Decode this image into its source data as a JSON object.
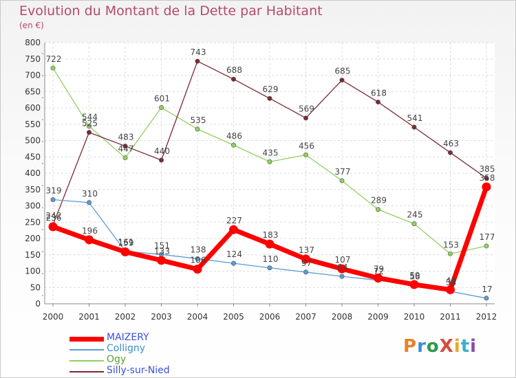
{
  "header": {
    "title": "Evolution du Montant de la Dette par Habitant",
    "subtitle": "(en €)"
  },
  "logo": {
    "text": "ProXiti",
    "colors": [
      "#e8822a",
      "#3a8fd0",
      "#2a9a4a",
      "#d84a3a",
      "#e8a82a",
      "#3ab0d0",
      "#8a4ab0"
    ]
  },
  "chart_data": {
    "type": "line",
    "title": "Evolution du Montant de la Dette par Habitant",
    "subtitle": "(en €)",
    "x": [
      "2000",
      "2001",
      "2002",
      "2003",
      "2004",
      "2005",
      "2006",
      "2007",
      "2008",
      "2009",
      "2010",
      "2011",
      "2012"
    ],
    "ylim": [
      0,
      800
    ],
    "yticks": [
      0,
      50,
      100,
      150,
      200,
      250,
      300,
      350,
      400,
      450,
      500,
      550,
      600,
      650,
      700,
      750,
      800
    ],
    "grid": true,
    "legend_position": "bottom-left",
    "series": [
      {
        "name": "MAIZERY",
        "color": "#ff0000",
        "values": [
          236,
          196,
          159,
          133,
          106,
          227,
          183,
          137,
          107,
          79,
          59,
          43,
          358
        ],
        "labels": [
          "236",
          "196",
          "159",
          "133",
          "106",
          "227",
          "183",
          "137",
          "107",
          "79",
          "59",
          "43",
          "358"
        ]
      },
      {
        "name": "Colligny",
        "color": "#5b9bd5",
        "values": [
          319,
          310,
          161,
          151,
          138,
          124,
          110,
          97,
          84,
          72,
          56,
          38,
          17
        ],
        "labels": [
          "319",
          "310",
          "161",
          "151",
          "138",
          "124",
          "110",
          "97",
          "84",
          "72",
          "56",
          "38",
          "17"
        ]
      },
      {
        "name": "Ogy",
        "color": "#90d060",
        "values": [
          722,
          544,
          447,
          601,
          535,
          486,
          435,
          456,
          377,
          289,
          245,
          153,
          177
        ],
        "labels": [
          "722",
          "544",
          "447",
          "601",
          "535",
          "486",
          "435",
          "456",
          "377",
          "289",
          "245",
          "153",
          "177"
        ]
      },
      {
        "name": "Silly-sur-Nied",
        "color": "#7a2a32",
        "values": [
          242,
          525,
          483,
          440,
          743,
          688,
          629,
          569,
          685,
          618,
          541,
          463,
          385
        ],
        "labels": [
          "242",
          "525",
          "483",
          "440",
          "743",
          "688",
          "629",
          "569",
          "685",
          "618",
          "541",
          "463",
          "385"
        ]
      }
    ]
  }
}
